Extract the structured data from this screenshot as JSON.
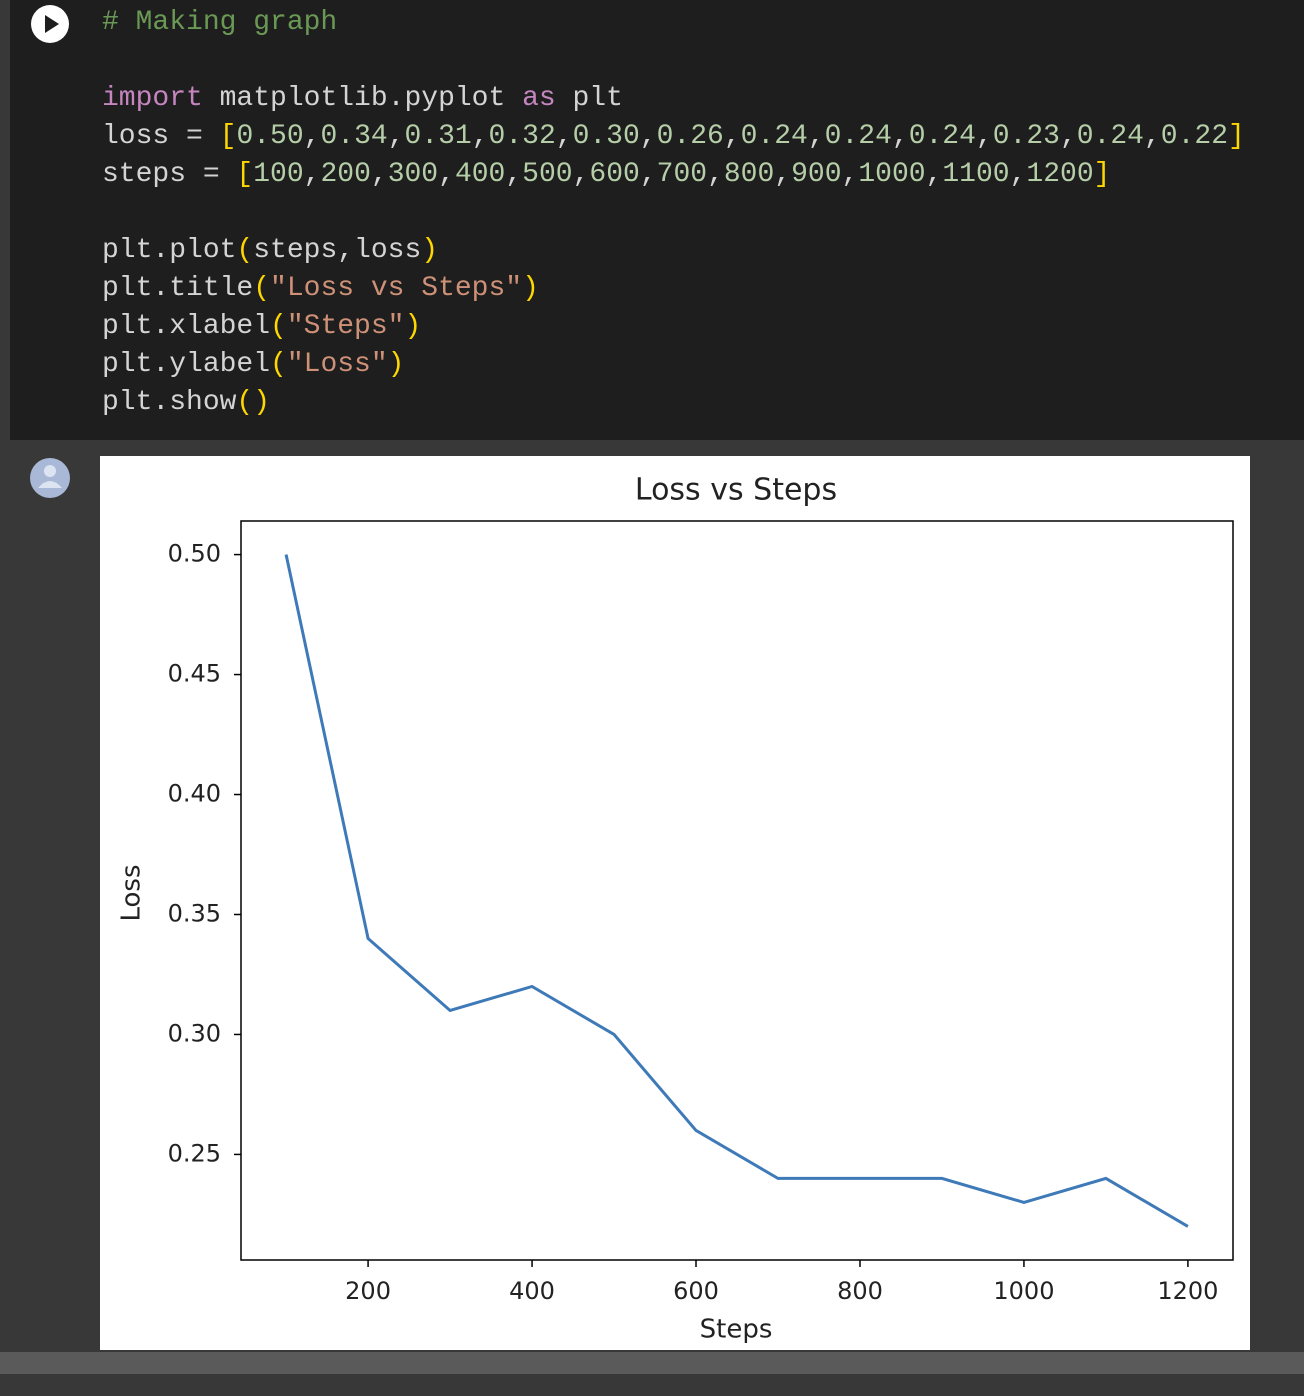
{
  "code": {
    "lines": [
      "# Making graph",
      "import matplotlib.pyplot as plt",
      "loss = [0.50,0.34,0.31,0.32,0.30,0.26,0.24,0.24,0.24,0.23,0.24,0.22]",
      "steps = [100,200,300,400,500,600,700,800,900,1000,1100,1200]",
      "plt.plot(steps,loss)",
      "plt.title(\"Loss vs Steps\")",
      "plt.xlabel(\"Steps\")",
      "plt.ylabel(\"Loss\")",
      "plt.show()"
    ]
  },
  "chart_data": {
    "type": "line",
    "title": "Loss vs Steps",
    "x_label": "Steps",
    "y_label": "Loss",
    "x": [
      100,
      200,
      300,
      400,
      500,
      600,
      700,
      800,
      900,
      1000,
      1100,
      1200
    ],
    "values": [
      0.5,
      0.34,
      0.31,
      0.32,
      0.3,
      0.26,
      0.24,
      0.24,
      0.24,
      0.23,
      0.24,
      0.22
    ],
    "color": "#3f7ab8",
    "xlim": [
      45,
      1255
    ],
    "xticks": [
      200,
      400,
      600,
      800,
      1000,
      1200
    ],
    "ylim": [
      0.206,
      0.514
    ],
    "yticks": [
      0.25,
      {
        "value": 0.3,
        "label": "0.30"
      },
      0.35,
      {
        "value": 0.4,
        "label": "0.40"
      },
      0.45,
      {
        "value": 0.5,
        "label": "0.50"
      }
    ],
    "grid": false
  }
}
